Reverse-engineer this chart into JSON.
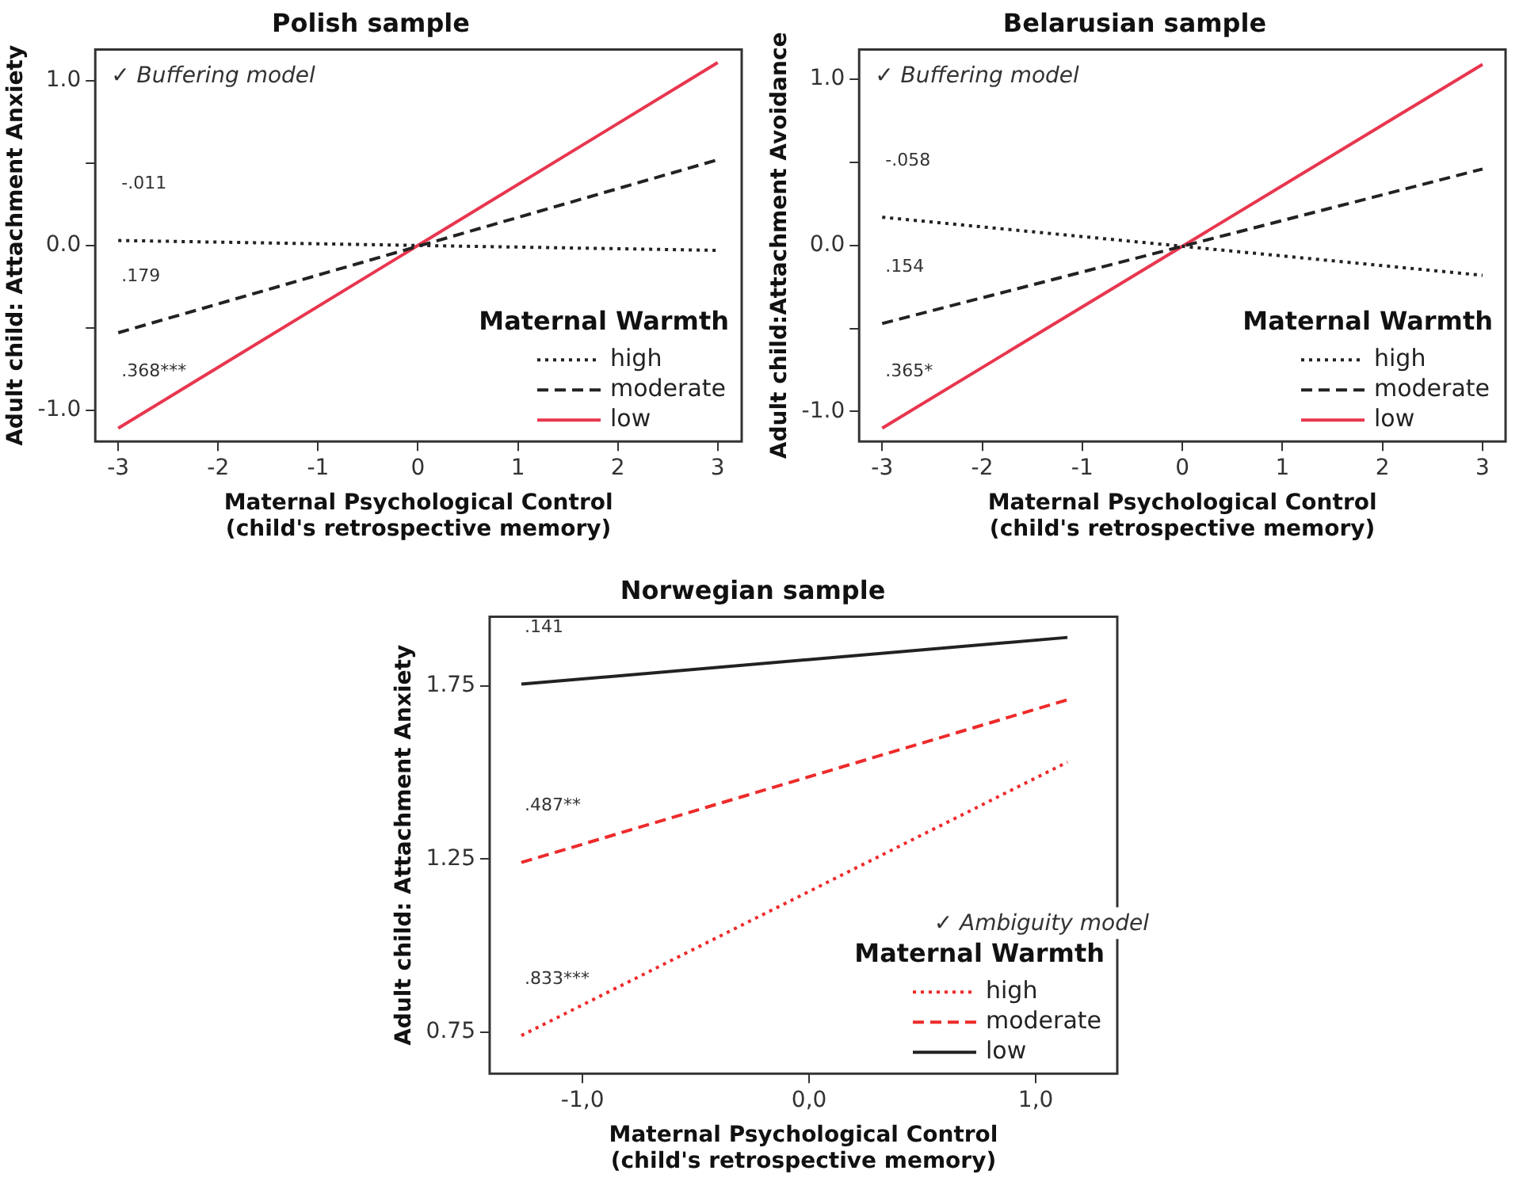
{
  "chart_data": [
    {
      "type": "line",
      "title": "Polish sample",
      "xlabel": "Maternal Psychological Control\n(child's retrospective memory)",
      "ylabel": "Adult child: Attachment Anxiety",
      "legend_title": "Maternal Warmth",
      "legend": "bottom right",
      "grid": false,
      "x": [
        -3,
        3
      ],
      "xlim": [
        -3.23,
        3.24
      ],
      "xticks": [
        -3,
        -2,
        -1,
        0,
        1,
        2,
        3
      ],
      "ylim": [
        -1.19,
        1.19
      ],
      "yticks": [
        {
          "value": -1,
          "label": "-1.0"
        },
        {
          "value": -0.5,
          "label": null
        },
        {
          "value": 0,
          "label": "0.0"
        },
        {
          "value": 0.5,
          "label": null
        },
        {
          "value": 1,
          "label": "1.0"
        }
      ],
      "series": [
        {
          "name": "high",
          "color": "#222222",
          "line_style": "dotted",
          "values": [
            0.03,
            -0.03
          ]
        },
        {
          "name": "moderate",
          "color": "#222222",
          "line_style": "dashed",
          "values": [
            -0.53,
            0.52
          ]
        },
        {
          "name": "low",
          "color": "#e8364e",
          "line_style": "solid",
          "values": [
            -1.11,
            1.11
          ]
        }
      ],
      "annotations": [
        "✓ Buffering model",
        "-.011",
        ".179",
        ".368***"
      ]
    },
    {
      "type": "line",
      "title": "Belarusian sample",
      "xlabel": "Maternal Psychological Control\n(child's retrospective memory)",
      "ylabel": "Adult child:Attachment Avoidance",
      "legend_title": "Maternal Warmth",
      "legend": "bottom right",
      "grid": false,
      "x": [
        -3,
        3
      ],
      "xlim": [
        -3.23,
        3.23
      ],
      "xticks": [
        -3,
        -2,
        -1,
        0,
        1,
        2,
        3
      ],
      "ylim": [
        -1.18,
        1.18
      ],
      "yticks": [
        {
          "value": -1,
          "label": "-1.0"
        },
        {
          "value": -0.5,
          "label": null
        },
        {
          "value": 0,
          "label": "0.0"
        },
        {
          "value": 0.5,
          "label": null
        },
        {
          "value": 1,
          "label": "1.0"
        }
      ],
      "series": [
        {
          "name": "high",
          "color": "#222222",
          "line_style": "dotted",
          "values": [
            0.17,
            -0.18
          ]
        },
        {
          "name": "moderate",
          "color": "#222222",
          "line_style": "dashed",
          "values": [
            -0.47,
            0.46
          ]
        },
        {
          "name": "low",
          "color": "#e8364e",
          "line_style": "solid",
          "values": [
            -1.1,
            1.09
          ]
        }
      ],
      "annotations": [
        "✓ Buffering model",
        "-.058",
        ".154",
        ".365*"
      ]
    },
    {
      "type": "line",
      "title": "Norwegian sample",
      "xlabel": "Maternal Psychological Control\n(child's retrospective memory)",
      "ylabel": "Adult child: Attachment Anxiety",
      "legend_title": "Maternal Warmth",
      "legend": "bottom right",
      "grid": false,
      "x": [
        -1.27,
        1.14
      ],
      "xlim": [
        -1.41,
        1.36
      ],
      "xticks": [
        {
          "value": -1,
          "label": "-1,0"
        },
        {
          "value": 0,
          "label": "0,0"
        },
        {
          "value": 1,
          "label": "1,0"
        }
      ],
      "ylim": [
        0.63,
        1.95
      ],
      "yticks": [
        0.75,
        1.25,
        1.75
      ],
      "series": [
        {
          "name": "high",
          "color": "#ee2a2a",
          "line_style": "dotted",
          "values": [
            0.74,
            1.53
          ]
        },
        {
          "name": "moderate",
          "color": "#ee2a2a",
          "line_style": "dashed",
          "values": [
            1.24,
            1.71
          ]
        },
        {
          "name": "low",
          "color": "#222222",
          "line_style": "solid",
          "values": [
            1.755,
            1.89
          ]
        }
      ],
      "annotations": [
        "✓ Ambiguity model",
        ".833***",
        ".487**",
        ".141"
      ]
    }
  ]
}
